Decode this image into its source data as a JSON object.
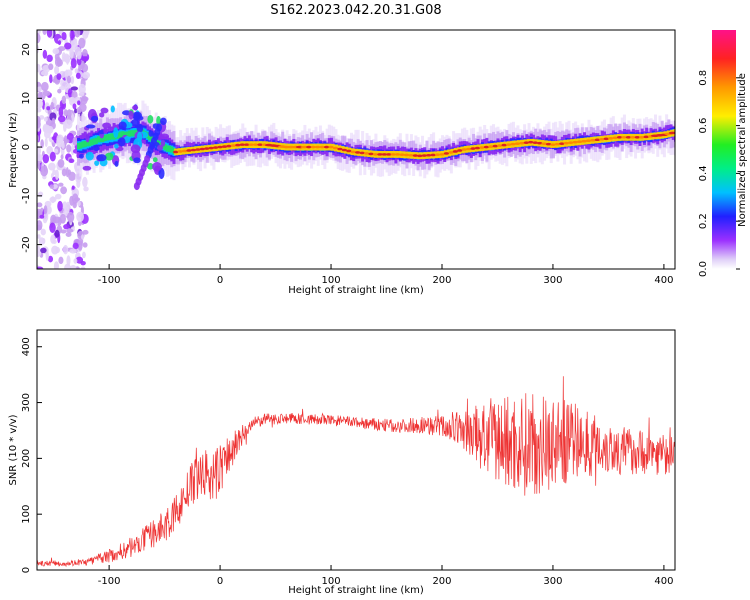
{
  "title": "S162.2023.042.20.31.G08",
  "colors": {
    "snr_line": "#ee3333",
    "ridge": "#dd2222",
    "axis": "#000000"
  },
  "chart_data": [
    {
      "type": "heatmap",
      "title": "S162.2023.042.20.31.G08",
      "xlabel": "Height of straight line (km)",
      "ylabel": "Frequency (Hz)",
      "xlim": [
        -165,
        410
      ],
      "ylim": [
        -25,
        24
      ],
      "x_ticks": [
        -100,
        0,
        100,
        200,
        300,
        400
      ],
      "y_ticks": [
        -20,
        -10,
        0,
        10,
        20
      ],
      "colorbar": {
        "label": "Normalized spectral amplitude",
        "range": [
          0,
          1
        ],
        "ticks": [
          "0.0",
          "0.2",
          "0.4",
          "0.6",
          "0.8"
        ]
      },
      "ridge": {
        "x": [
          -130,
          -110,
          -90,
          -70,
          -55,
          -40,
          -20,
          0,
          20,
          40,
          60,
          80,
          100,
          120,
          140,
          160,
          180,
          200,
          220,
          240,
          260,
          280,
          300,
          320,
          340,
          360,
          380,
          400,
          410
        ],
        "y": [
          0.0,
          1.5,
          2.5,
          3.0,
          0.5,
          -1.0,
          -0.5,
          0.0,
          0.5,
          0.5,
          0.0,
          0.0,
          0.0,
          -1.0,
          -1.5,
          -1.5,
          -1.8,
          -1.5,
          -0.5,
          0.0,
          0.5,
          1.0,
          0.5,
          1.0,
          1.5,
          2.0,
          2.0,
          2.5,
          3.0
        ]
      },
      "noise_region": {
        "x_range": [
          -165,
          -120
        ],
        "y_range": [
          -25,
          24
        ]
      }
    },
    {
      "type": "line",
      "xlabel": "Height of straight line (km)",
      "ylabel": "SNR (10 * v/v)",
      "xlim": [
        -165,
        410
      ],
      "ylim": [
        0,
        430
      ],
      "x_ticks": [
        -100,
        0,
        100,
        200,
        300,
        400
      ],
      "y_ticks": [
        0,
        100,
        200,
        300,
        400
      ],
      "series": [
        {
          "x": [
            -165,
            -140,
            -120,
            -100,
            -80,
            -60,
            -45,
            -35,
            -25,
            -15,
            -5,
            0,
            10,
            20,
            30,
            40,
            60,
            80,
            100,
            120,
            140,
            160,
            180,
            200,
            220,
            240,
            260,
            280,
            300,
            320,
            340,
            360,
            380,
            400,
            410
          ],
          "mean": [
            12,
            12,
            14,
            25,
            40,
            65,
            85,
            120,
            155,
            175,
            160,
            185,
            210,
            240,
            262,
            270,
            272,
            270,
            268,
            265,
            260,
            258,
            260,
            258,
            250,
            235,
            228,
            225,
            228,
            230,
            225,
            215,
            212,
            208,
            205
          ],
          "spread": [
            5,
            5,
            6,
            12,
            18,
            25,
            30,
            35,
            40,
            45,
            50,
            50,
            35,
            20,
            12,
            10,
            10,
            10,
            10,
            10,
            12,
            12,
            15,
            20,
            35,
            70,
            90,
            95,
            85,
            70,
            55,
            45,
            40,
            38,
            35
          ]
        }
      ]
    }
  ]
}
